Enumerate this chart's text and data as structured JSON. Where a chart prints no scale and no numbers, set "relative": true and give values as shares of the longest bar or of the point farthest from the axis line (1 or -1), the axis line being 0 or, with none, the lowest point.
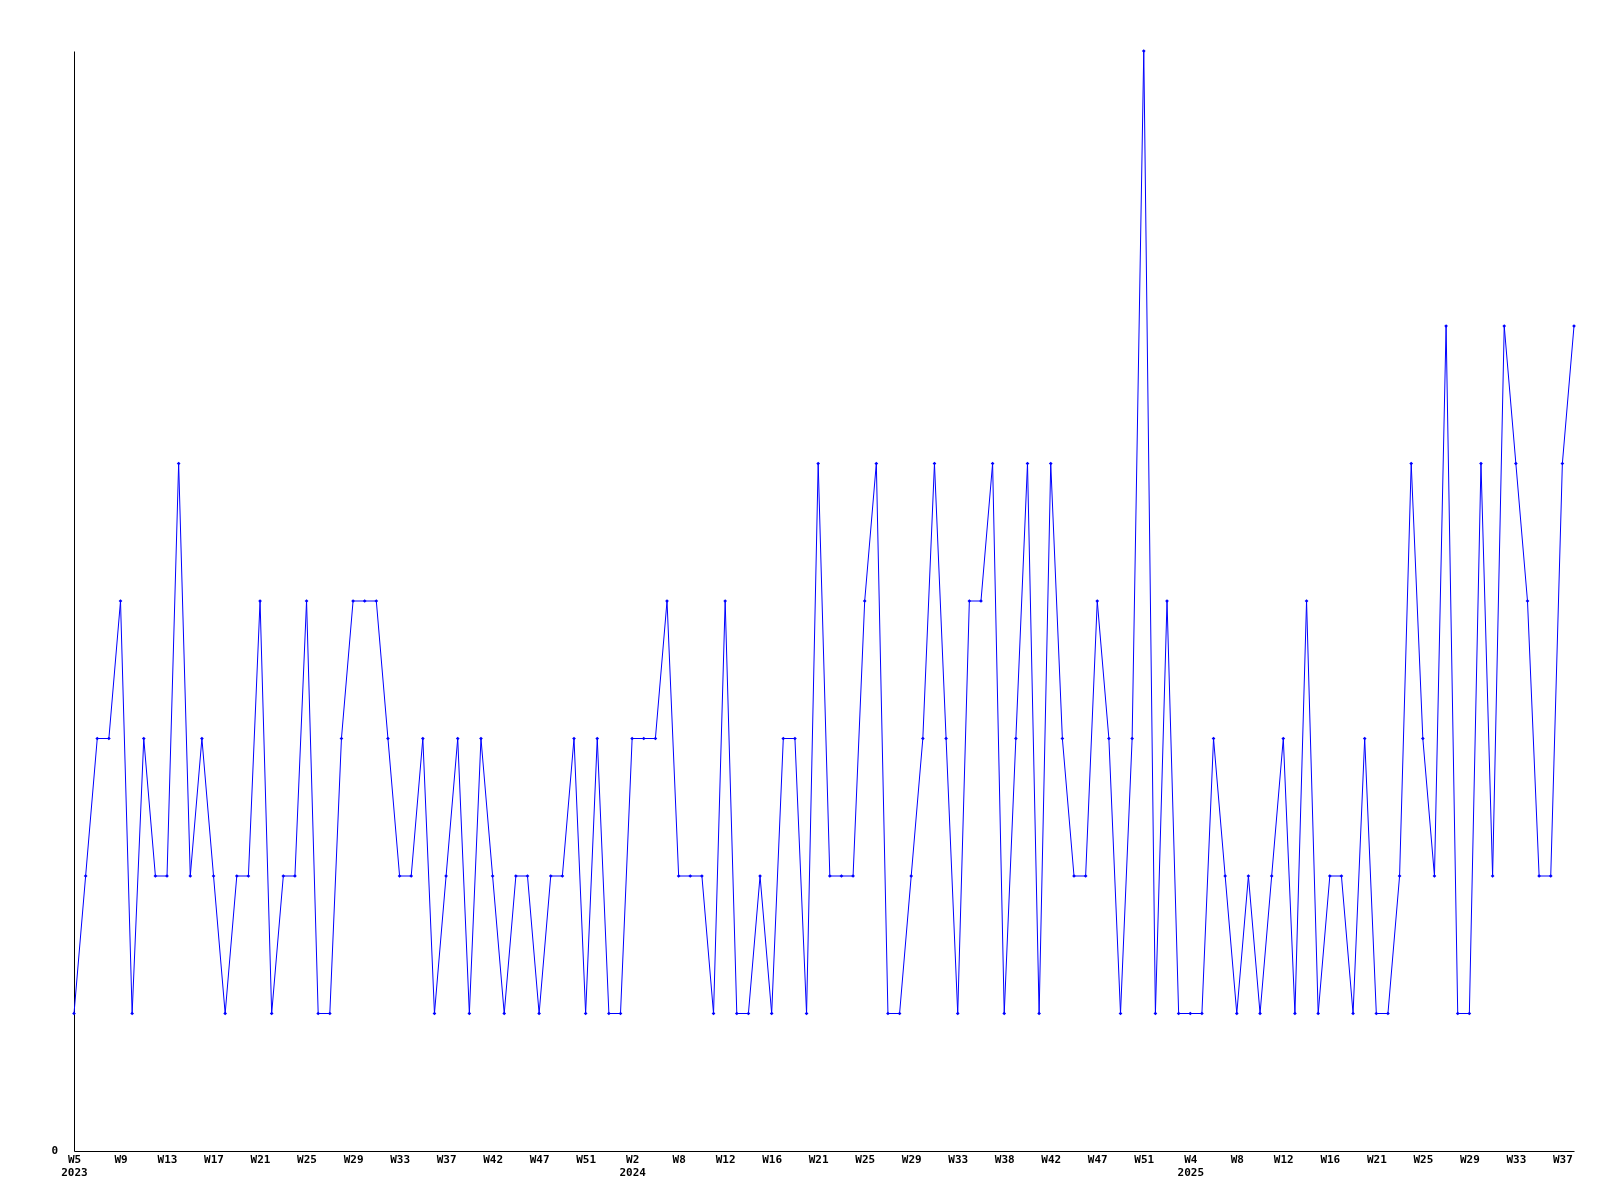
{
  "chart_data": {
    "type": "line",
    "relative": true,
    "marker": "diamond",
    "line_style": "solid",
    "categories": [
      "W5\n2023",
      null,
      null,
      null,
      "W9",
      null,
      null,
      null,
      "W13",
      null,
      null,
      null,
      "W17",
      null,
      null,
      null,
      "W21",
      null,
      null,
      null,
      "W25",
      null,
      null,
      null,
      "W29",
      null,
      null,
      null,
      "W33",
      null,
      null,
      null,
      "W37",
      null,
      null,
      null,
      "W42",
      null,
      null,
      null,
      "W47",
      null,
      null,
      null,
      "W51",
      null,
      null,
      null,
      "W2\n2024",
      null,
      null,
      null,
      "W8",
      null,
      null,
      null,
      "W12",
      null,
      null,
      null,
      "W16",
      null,
      null,
      null,
      "W21",
      null,
      null,
      null,
      "W25",
      null,
      null,
      null,
      "W29",
      null,
      null,
      null,
      "W33",
      null,
      null,
      null,
      "W38",
      null,
      null,
      null,
      "W42",
      null,
      null,
      null,
      "W47",
      null,
      null,
      null,
      "W51",
      null,
      null,
      null,
      "W4\n2025",
      null,
      null,
      null,
      "W8",
      null,
      null,
      null,
      "W12",
      null,
      null,
      null,
      "W16",
      null,
      null,
      null,
      "W21",
      null,
      null,
      null,
      "W25",
      null,
      null,
      null,
      "W29",
      null,
      null,
      null,
      "W33",
      null,
      null,
      null,
      "W37",
      null
    ],
    "series": [
      {
        "color": "#0000ff",
        "values": [
          0.125,
          0.25,
          0.375,
          0.375,
          0.5,
          0.125,
          0.375,
          0.25,
          0.25,
          0.625,
          0.25,
          0.375,
          0.25,
          0.125,
          0.25,
          0.25,
          0.5,
          0.125,
          0.25,
          0.25,
          0.5,
          0.125,
          0.125,
          0.375,
          0.5,
          0.5,
          0.5,
          0.375,
          0.25,
          0.25,
          0.375,
          0.125,
          0.25,
          0.375,
          0.125,
          0.375,
          0.25,
          0.125,
          0.25,
          0.25,
          0.125,
          0.25,
          0.25,
          0.375,
          0.125,
          0.375,
          0.125,
          0.125,
          0.375,
          0.375,
          0.375,
          0.5,
          0.25,
          0.25,
          0.25,
          0.125,
          0.5,
          0.125,
          0.125,
          0.25,
          0.125,
          0.375,
          0.375,
          0.125,
          0.625,
          0.25,
          0.25,
          0.25,
          0.5,
          0.625,
          0.125,
          0.125,
          0.25,
          0.375,
          0.625,
          0.375,
          0.125,
          0.5,
          0.5,
          0.625,
          0.125,
          0.375,
          0.625,
          0.125,
          0.625,
          0.375,
          0.25,
          0.25,
          0.5,
          0.375,
          0.125,
          0.375,
          1,
          0.125,
          0.5,
          0.125,
          0.125,
          0.125,
          0.375,
          0.25,
          0.125,
          0.25,
          0.125,
          0.25,
          0.375,
          0.125,
          0.5,
          0.125,
          0.25,
          0.25,
          0.125,
          0.375,
          0.125,
          0.125,
          0.25,
          0.625,
          0.375,
          0.25,
          0.75,
          0.125,
          0.125,
          0.625,
          0.25,
          0.75,
          0.625,
          0.5,
          0.25,
          0.25,
          0.625,
          0.75
        ]
      }
    ],
    "annotations": [
      "0"
    ]
  }
}
